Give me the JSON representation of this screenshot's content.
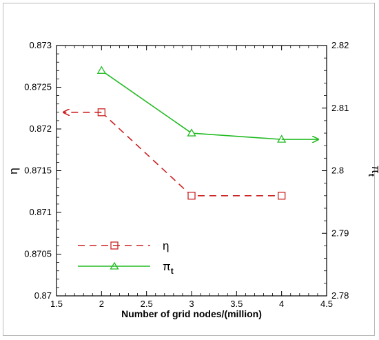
{
  "chart_data": {
    "type": "line",
    "xlabel": "Number of grid nodes/(million)",
    "xlim": [
      1.5,
      4.5
    ],
    "x_ticks": [
      "1.5",
      "2",
      "2.5",
      "3",
      "3.5",
      "4",
      "4.5"
    ],
    "left_axis": {
      "label": "η",
      "ylim": [
        0.87,
        0.873
      ],
      "ticks": [
        "0.87",
        "0.8705",
        "0.871",
        "0.8715",
        "0.872",
        "0.8725",
        "0.873"
      ]
    },
    "right_axis": {
      "label": "π",
      "label_subscript": "t",
      "ylim": [
        2.78,
        2.82
      ],
      "ticks": [
        "2.78",
        "2.79",
        "2.8",
        "2.81",
        "2.82"
      ]
    },
    "series": [
      {
        "name": "η",
        "axis": "left",
        "color": "#cc2222",
        "line_style": "dashed",
        "marker": "square",
        "x": [
          2,
          3,
          4
        ],
        "y": [
          0.8722,
          0.8712,
          0.8712
        ]
      },
      {
        "name": "π",
        "name_subscript": "t",
        "axis": "right",
        "color": "#22bb22",
        "line_style": "solid",
        "marker": "triangle",
        "x": [
          2,
          3,
          4
        ],
        "y": [
          2.816,
          2.806,
          2.805
        ]
      }
    ],
    "legend_position": "bottom-left",
    "grid": false
  }
}
